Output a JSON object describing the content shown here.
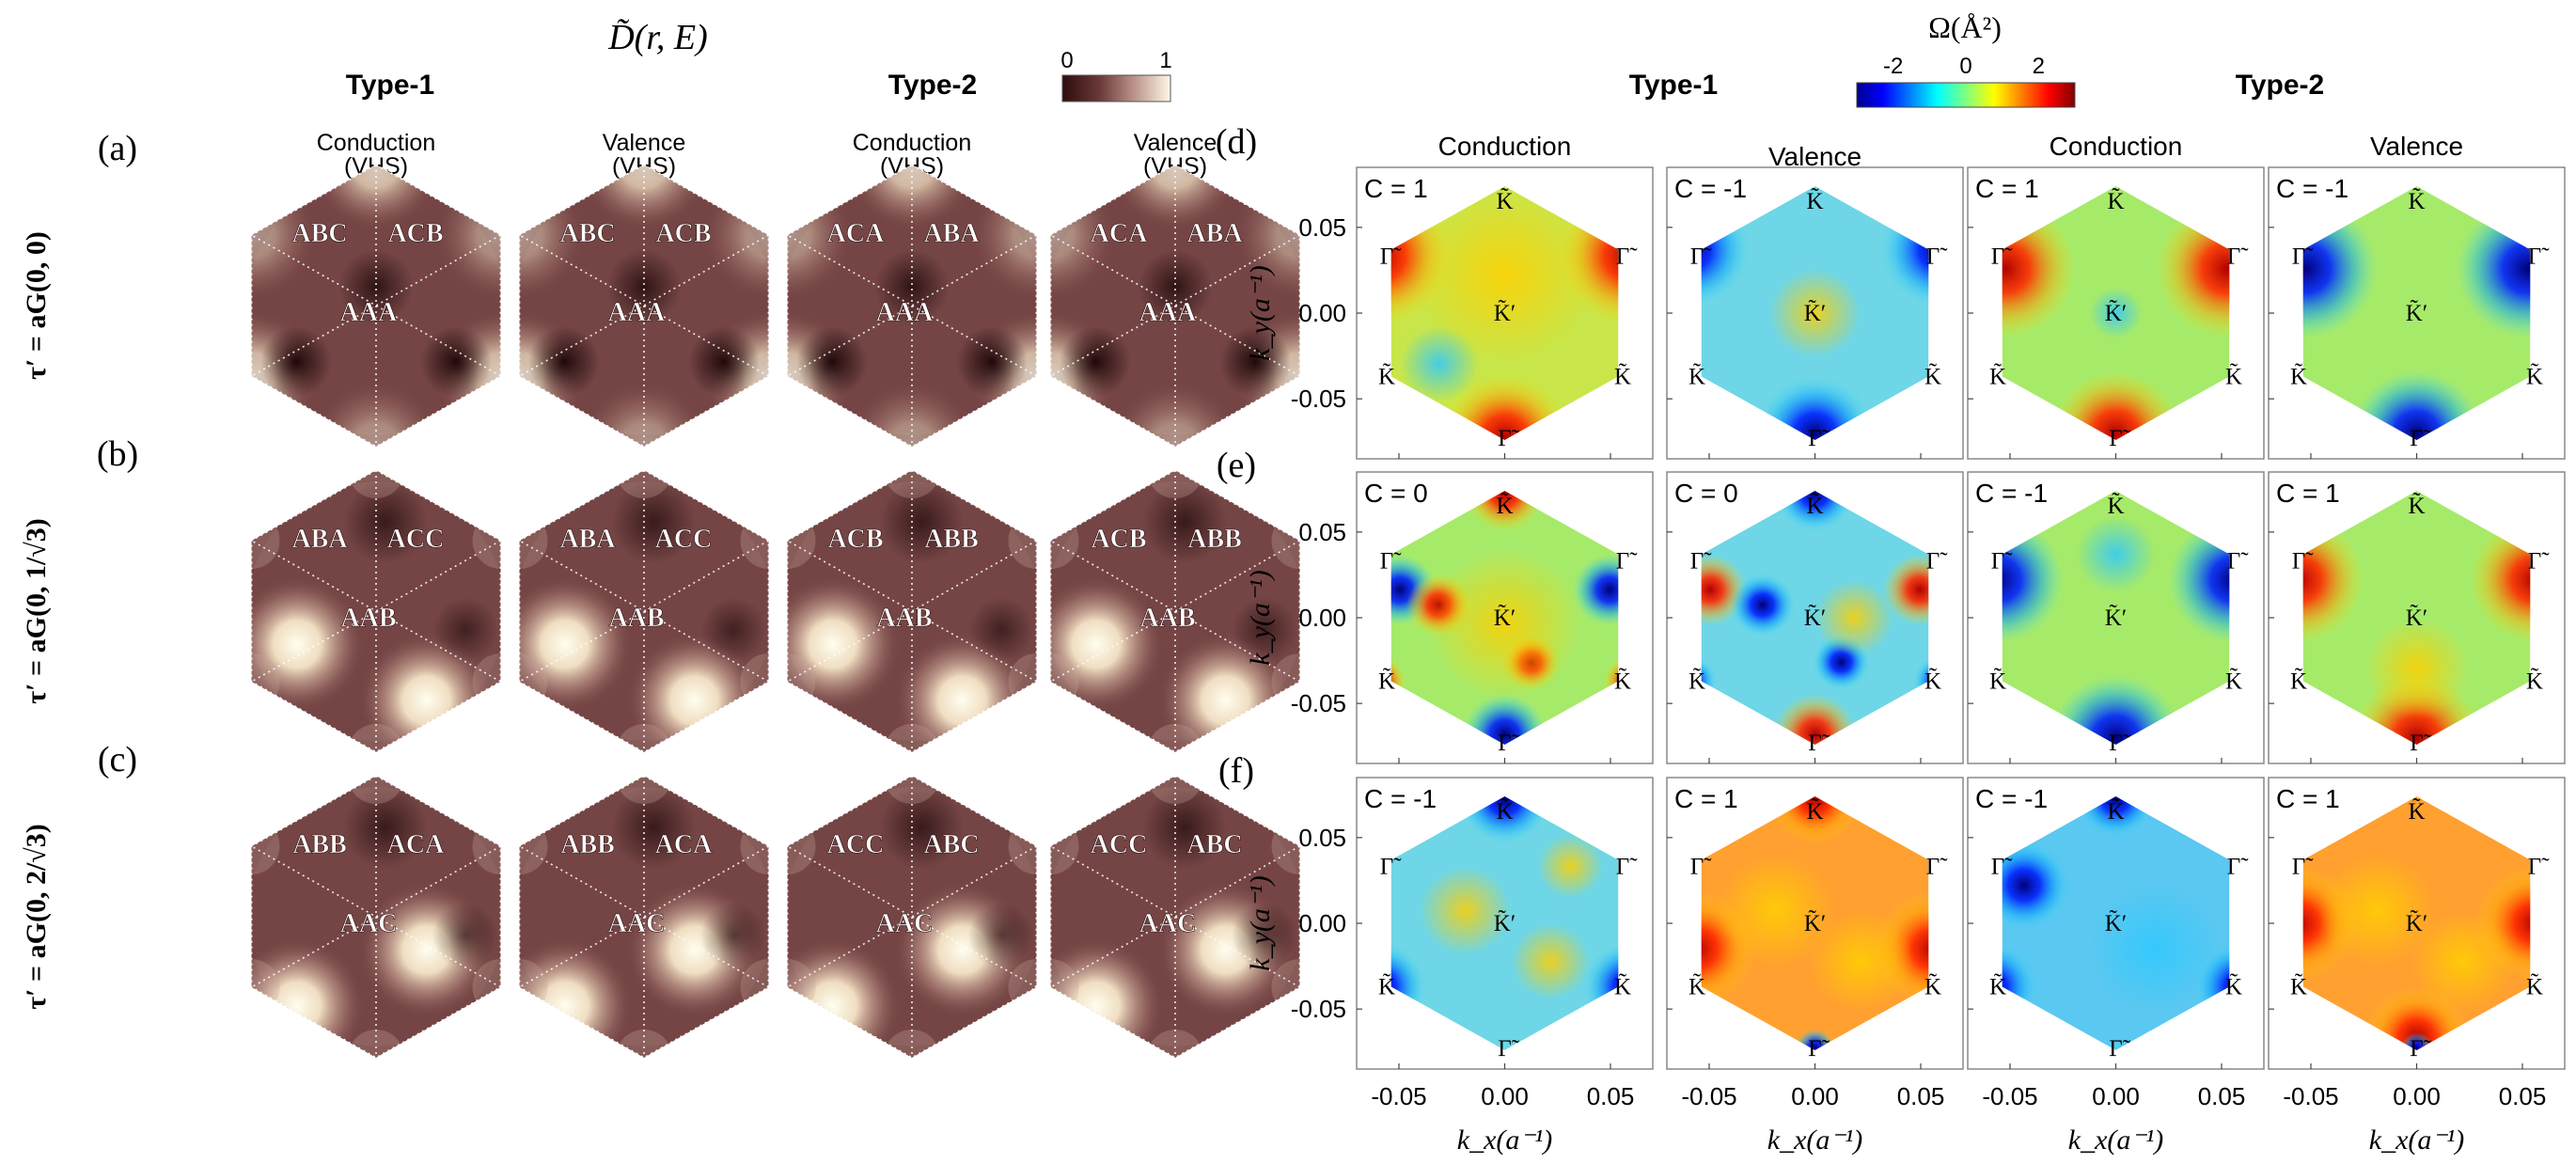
{
  "left": {
    "title": "D̃(r, E)",
    "colorbar": {
      "min_label": "0",
      "max_label": "1",
      "range": [
        0,
        1
      ]
    },
    "type_headers": [
      "Type-1",
      "Type-2"
    ],
    "column_headers": [
      [
        "Conduction",
        "(VHS)"
      ],
      [
        "Valence",
        "(VHS)"
      ],
      [
        "Conduction",
        "(VHS)"
      ],
      [
        "Valence",
        "(VHS)"
      ]
    ],
    "rows": [
      {
        "panel": "(a)",
        "tau": "τ′ = aG(0, 0)",
        "labels": [
          [
            "ABC",
            "ACB",
            "AAA"
          ],
          [
            "ABC",
            "ACB",
            "AAA"
          ],
          [
            "ACA",
            "ABA",
            "AAA"
          ],
          [
            "ACA",
            "ABA",
            "AAA"
          ]
        ]
      },
      {
        "panel": "(b)",
        "tau": "τ′ = aG(0, 1/√3)",
        "labels": [
          [
            "ABA",
            "ACC",
            "AAB"
          ],
          [
            "ABA",
            "ACC",
            "AAB"
          ],
          [
            "ACB",
            "ABB",
            "AAB"
          ],
          [
            "ACB",
            "ABB",
            "AAB"
          ]
        ]
      },
      {
        "panel": "(c)",
        "tau": "τ′ = aG(0, 2/√3)",
        "labels": [
          [
            "ABB",
            "ACA",
            "AAC"
          ],
          [
            "ABB",
            "ACA",
            "AAC"
          ],
          [
            "ACC",
            "ABC",
            "AAC"
          ],
          [
            "ACC",
            "ABC",
            "AAC"
          ]
        ]
      }
    ]
  },
  "right": {
    "colorbar": {
      "title": "Ω(Å²)",
      "ticks": [
        "-2",
        "0",
        "2"
      ],
      "range": [
        -3,
        3
      ]
    },
    "type_headers": [
      "Type-1",
      "Type-2"
    ],
    "column_headers": [
      "Conduction",
      "Valence",
      "Conduction",
      "Valence"
    ],
    "panel_labels": [
      "(d)",
      "(e)",
      "(f)"
    ],
    "ylabel": "k_y(a⁻¹)",
    "xlabel": "k_x(a⁻¹)",
    "xticks": [
      "-0.05",
      "0.00",
      "0.05"
    ],
    "yticks": [
      "0.05",
      "0.00",
      "-0.05"
    ],
    "k_labels": {
      "K": "K̃",
      "Kp": "K̃′",
      "G": "Γ̃"
    },
    "chern": [
      [
        "C = 1",
        "C = -1",
        "C = 1",
        "C = -1"
      ],
      [
        "C = 0",
        "C = 0",
        "C = -1",
        "C = 1"
      ],
      [
        "C = -1",
        "C = 1",
        "C = -1",
        "C = 1"
      ]
    ]
  },
  "chart_data": {
    "type": "heatmap",
    "title": "",
    "colorbar_title": "Ω(Å²)",
    "colorbar_range": [
      -3,
      3
    ],
    "x": {
      "label": "k_x(a⁻¹)",
      "ticks": [
        -0.05,
        0.0,
        0.05
      ],
      "range": [
        -0.07,
        0.07
      ]
    },
    "y": {
      "label": "k_y(a⁻¹)",
      "ticks": [
        -0.05,
        0.0,
        0.05
      ],
      "range": [
        -0.085,
        0.085
      ]
    },
    "panels": [
      {
        "row": "(d)",
        "chern_numbers": [
          1,
          -1,
          1,
          -1
        ]
      },
      {
        "row": "(e)",
        "chern_numbers": [
          0,
          0,
          -1,
          1
        ]
      },
      {
        "row": "(f)",
        "chern_numbers": [
          -1,
          1,
          -1,
          1
        ]
      }
    ]
  }
}
